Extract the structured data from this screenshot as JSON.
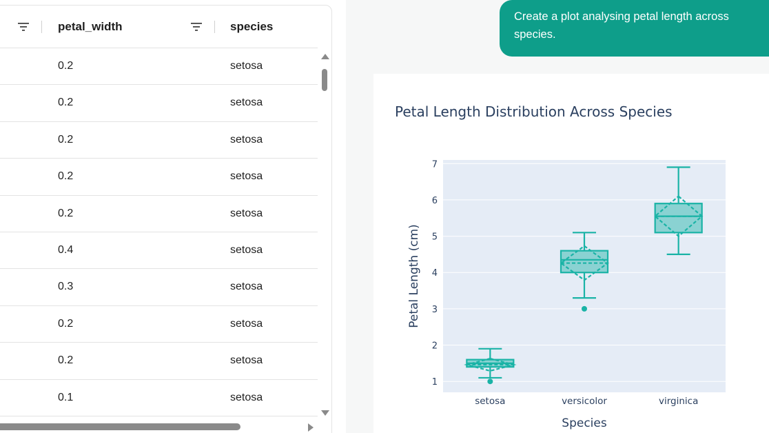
{
  "table": {
    "columns": [
      {
        "label": "petal_width"
      },
      {
        "label": "species"
      }
    ],
    "rows": [
      {
        "petal_width": "0.2",
        "species": "setosa"
      },
      {
        "petal_width": "0.2",
        "species": "setosa"
      },
      {
        "petal_width": "0.2",
        "species": "setosa"
      },
      {
        "petal_width": "0.2",
        "species": "setosa"
      },
      {
        "petal_width": "0.2",
        "species": "setosa"
      },
      {
        "petal_width": "0.4",
        "species": "setosa"
      },
      {
        "petal_width": "0.3",
        "species": "setosa"
      },
      {
        "petal_width": "0.2",
        "species": "setosa"
      },
      {
        "petal_width": "0.2",
        "species": "setosa"
      },
      {
        "petal_width": "0.1",
        "species": "setosa"
      }
    ]
  },
  "chat": {
    "user_message": "Create a plot analysing petal length across species.",
    "user_bubble_color": "#0e9e8a"
  },
  "chart_data": {
    "type": "box",
    "title": "Petal Length Distribution Across Species",
    "xlabel": "Species",
    "ylabel": "Petal Length (cm)",
    "ylim": [
      0.7,
      7.1
    ],
    "yticks": [
      1,
      2,
      3,
      4,
      5,
      6,
      7
    ],
    "categories": [
      "setosa",
      "versicolor",
      "virginica"
    ],
    "color": "#1ab3a6",
    "plot_bg": "#e5ecf6",
    "boxes": [
      {
        "category": "setosa",
        "min": 1.1,
        "q1": 1.4,
        "median": 1.5,
        "q3": 1.6,
        "max": 1.9,
        "mean": 1.46,
        "sd": 0.17,
        "outliers": [
          1.0
        ]
      },
      {
        "category": "versicolor",
        "min": 3.3,
        "q1": 4.0,
        "median": 4.35,
        "q3": 4.6,
        "max": 5.1,
        "mean": 4.26,
        "sd": 0.47,
        "outliers": [
          3.0
        ]
      },
      {
        "category": "virginica",
        "min": 4.5,
        "q1": 5.1,
        "median": 5.55,
        "q3": 5.9,
        "max": 6.9,
        "mean": 5.55,
        "sd": 0.55,
        "outliers": []
      }
    ]
  }
}
